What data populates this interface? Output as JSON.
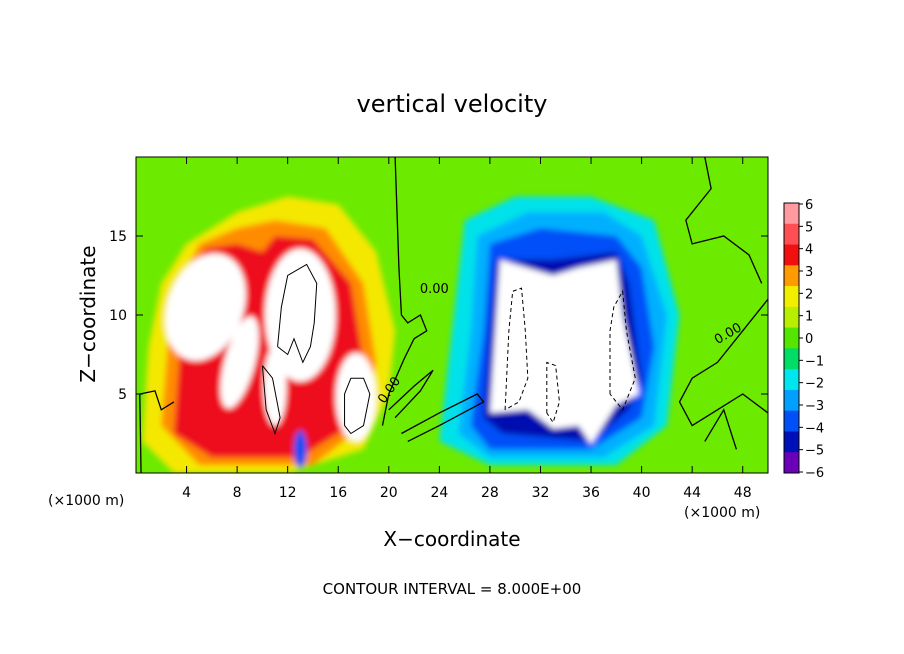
{
  "chart_data": {
    "type": "heatmap",
    "title": "vertical velocity",
    "xlabel": "X−coordinate",
    "ylabel": "Z−coordinate",
    "x_unit": "(×1000 m)",
    "y_unit": "(×1000 m)",
    "xlim": [
      0,
      50
    ],
    "ylim": [
      0,
      20
    ],
    "x_ticks": [
      4,
      8,
      12,
      16,
      20,
      24,
      28,
      32,
      36,
      40,
      44,
      48
    ],
    "y_ticks": [
      5,
      10,
      15
    ],
    "grid": false,
    "colorbar": {
      "levels": [
        6,
        5,
        4,
        3,
        2,
        1,
        0,
        -1,
        -2,
        -3,
        -4,
        -5,
        -6
      ],
      "labels": [
        "6",
        "5",
        "4",
        "3",
        "2",
        "1",
        "0",
        "−1",
        "−2",
        "−3",
        "−4",
        "−5",
        "−6"
      ],
      "colors": [
        "#ff9aa0",
        "#ff4f55",
        "#f10f0f",
        "#ff9a00",
        "#f2ee00",
        "#b8ee00",
        "#55e600",
        "#00dd66",
        "#00e6ee",
        "#00a0ff",
        "#0050f8",
        "#0010b8",
        "#6a00b8"
      ]
    },
    "contour_labels": [
      "0.00",
      "0.00",
      "0.00"
    ],
    "contour_interval_label": "CONTOUR INTERVAL = 8.000E+00",
    "features": [
      {
        "kind": "updraft",
        "x": 5.5,
        "z": 10.5,
        "value": 8
      },
      {
        "kind": "updraft",
        "x": 13.0,
        "z": 10.0,
        "value": 8
      },
      {
        "kind": "updraft",
        "x": 17.5,
        "z": 5.0,
        "value": 6
      },
      {
        "kind": "downdraft",
        "x": 33.0,
        "z": 9.0,
        "value": -8
      },
      {
        "kind": "downdraft",
        "x": 34.0,
        "z": 12.0,
        "value": -6
      }
    ]
  }
}
